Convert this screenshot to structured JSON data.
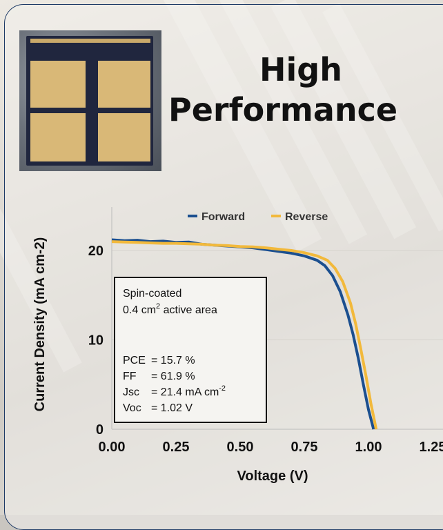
{
  "heading": {
    "line1": "High",
    "line2": "Performance"
  },
  "photo": {
    "description": "solar-cell-device"
  },
  "colors": {
    "forward": "#1b4f8f",
    "reverse": "#f2b93b",
    "frame": "#1d3a66"
  },
  "annotation": {
    "lines": [
      "Spin-coated",
      "0.4 cm",
      "2",
      " active area",
      "PCE",
      "= 15.7 %",
      "FF",
      "= 61.9 %",
      "Jsc",
      "= 21.4 mA cm",
      "-2",
      "Voc",
      "= 1.02 V"
    ]
  },
  "chart_data": {
    "type": "line",
    "xlabel": "Voltage (V)",
    "ylabel": "Current Density (mA cm-2)",
    "xlim": [
      0,
      1.25
    ],
    "ylim": [
      0,
      23
    ],
    "xticks": [
      "0.00",
      "0.25",
      "0.50",
      "0.75",
      "1.00",
      "1.25"
    ],
    "xtick_values": [
      0,
      0.25,
      0.5,
      0.75,
      1.0,
      1.25
    ],
    "yticks": [
      "0",
      "10",
      "20"
    ],
    "ytick_values": [
      0,
      10,
      20
    ],
    "grid": true,
    "legend": "top",
    "series": [
      {
        "name": "Forward",
        "x": [
          0,
          0.05,
          0.1,
          0.15,
          0.2,
          0.25,
          0.3,
          0.35,
          0.4,
          0.45,
          0.5,
          0.55,
          0.6,
          0.65,
          0.7,
          0.75,
          0.8,
          0.83,
          0.86,
          0.89,
          0.92,
          0.94,
          0.96,
          0.98,
          1.0,
          1.02
        ],
        "y": [
          21.2,
          21.1,
          21.15,
          21.0,
          21.05,
          20.9,
          20.95,
          20.7,
          20.6,
          20.5,
          20.4,
          20.3,
          20.1,
          19.9,
          19.7,
          19.4,
          18.9,
          18.3,
          17.2,
          15.4,
          12.8,
          10.6,
          8.0,
          5.0,
          2.2,
          0.0
        ]
      },
      {
        "name": "Reverse",
        "x": [
          0,
          0.05,
          0.1,
          0.15,
          0.2,
          0.25,
          0.3,
          0.35,
          0.4,
          0.45,
          0.5,
          0.55,
          0.6,
          0.65,
          0.7,
          0.75,
          0.8,
          0.84,
          0.87,
          0.9,
          0.93,
          0.95,
          0.97,
          0.99,
          1.01,
          1.03
        ],
        "y": [
          21.0,
          20.95,
          20.9,
          20.85,
          20.8,
          20.8,
          20.75,
          20.7,
          20.6,
          20.55,
          20.45,
          20.4,
          20.3,
          20.15,
          20.0,
          19.75,
          19.4,
          18.9,
          18.0,
          16.5,
          14.1,
          11.8,
          9.0,
          6.0,
          2.8,
          0.0
        ]
      }
    ]
  }
}
